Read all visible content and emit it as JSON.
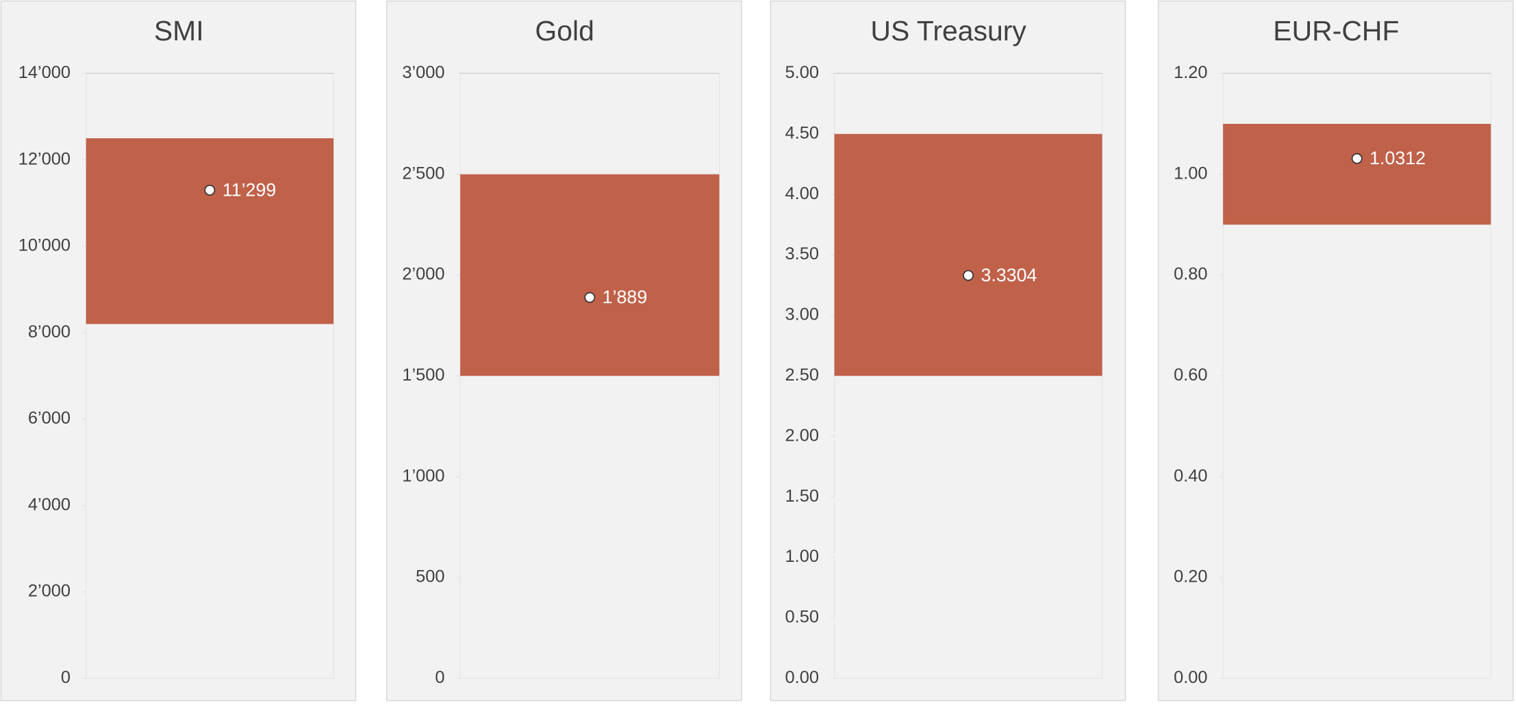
{
  "chart_data": [
    {
      "type": "range",
      "title": "SMI",
      "ylim": [
        0,
        14000
      ],
      "yticks": [
        0,
        {
          "value": 2000,
          "label": "2’000"
        },
        {
          "value": 4000,
          "label": "4’000"
        },
        {
          "value": 6000,
          "label": "6’000"
        },
        {
          "value": 8000,
          "label": "8’000"
        },
        {
          "value": 10000,
          "label": "10’000"
        },
        {
          "value": 12000,
          "label": "12’000"
        },
        {
          "value": 14000,
          "label": "14’000"
        }
      ],
      "range": [
        8200,
        12500
      ],
      "color": "#c0614a",
      "value": 11299,
      "value_label": "11’299"
    },
    {
      "type": "range",
      "title": "Gold",
      "ylim": [
        0,
        3000
      ],
      "yticks": [
        0,
        500,
        {
          "value": 1000,
          "label": "1’000"
        },
        {
          "value": 1500,
          "label": "1’500"
        },
        {
          "value": 2000,
          "label": "2’000"
        },
        {
          "value": 2500,
          "label": "2’500"
        },
        {
          "value": 3000,
          "label": "3’000"
        }
      ],
      "range": [
        1500,
        2500
      ],
      "color": "#c0614a",
      "value": 1889,
      "value_label": "1’889"
    },
    {
      "type": "range",
      "title": "US Treasury",
      "ylim": [
        0,
        5
      ],
      "yticks": [
        {
          "value": 0,
          "label": "0.00"
        },
        {
          "value": 0.5,
          "label": "0.50"
        },
        {
          "value": 1,
          "label": "1.00"
        },
        {
          "value": 1.5,
          "label": "1.50"
        },
        {
          "value": 2,
          "label": "2.00"
        },
        {
          "value": 2.5,
          "label": "2.50"
        },
        {
          "value": 3,
          "label": "3.00"
        },
        {
          "value": 3.5,
          "label": "3.50"
        },
        {
          "value": 4,
          "label": "4.00"
        },
        {
          "value": 4.5,
          "label": "4.50"
        },
        {
          "value": 5,
          "label": "5.00"
        }
      ],
      "range": [
        2.5,
        4.5
      ],
      "color": "#c0614a",
      "value": 3.3304
    },
    {
      "type": "range",
      "title": "EUR-CHF",
      "ylim": [
        0,
        1.2
      ],
      "yticks": [
        {
          "value": 0,
          "label": "0.00"
        },
        {
          "value": 0.2,
          "label": "0.20"
        },
        {
          "value": 0.4,
          "label": "0.40"
        },
        {
          "value": 0.6,
          "label": "0.60"
        },
        {
          "value": 0.8,
          "label": "0.80"
        },
        {
          "value": 1,
          "label": "1.00"
        },
        {
          "value": 1.2,
          "label": "1.20"
        }
      ],
      "range": [
        0.9,
        1.1
      ],
      "color": "#c0614a",
      "value": 1.0312
    }
  ]
}
